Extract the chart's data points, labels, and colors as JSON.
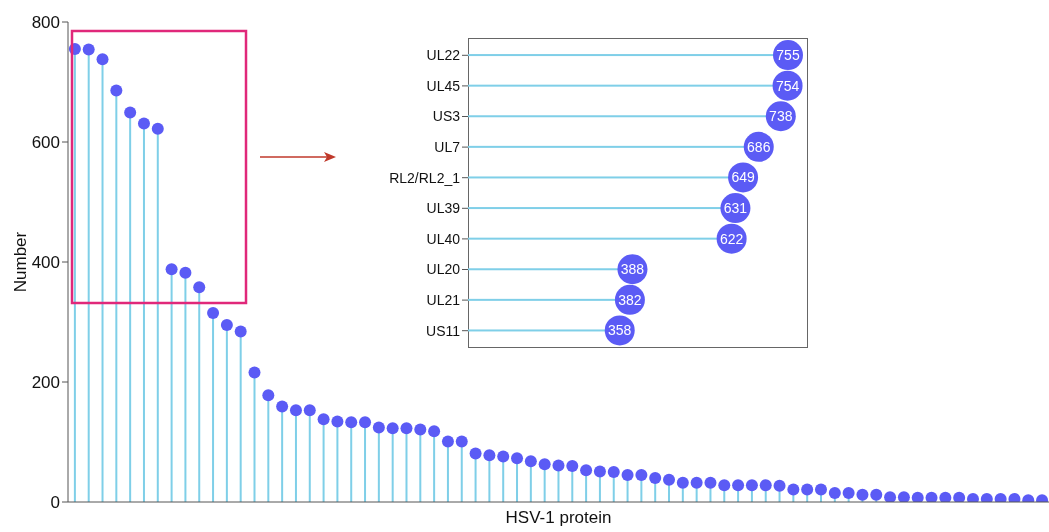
{
  "chart_data": [
    {
      "type": "lollipop",
      "xlabel": "HSV-1 protein",
      "ylabel": "Number",
      "categories": [
        null,
        null,
        null,
        null,
        null,
        null,
        null,
        null,
        null,
        null,
        null,
        null,
        null,
        null,
        null,
        null,
        null,
        null,
        null,
        null,
        null,
        null,
        null,
        null,
        null,
        null,
        null,
        null,
        null,
        null,
        null,
        null,
        null,
        null,
        null,
        null,
        null,
        null,
        null,
        null,
        null,
        null,
        null,
        null,
        null,
        null,
        null,
        null,
        null,
        null,
        null,
        null,
        null,
        null,
        null,
        null,
        null,
        null,
        null,
        null,
        null,
        null,
        null,
        null,
        null,
        null,
        null,
        null,
        null,
        null,
        null
      ],
      "values": [
        755,
        754,
        738,
        686,
        649,
        631,
        622,
        388,
        382,
        358,
        315,
        295,
        284,
        216,
        178,
        159,
        153,
        153,
        138,
        134,
        133,
        133,
        124,
        123,
        123,
        121,
        118,
        101,
        101,
        81,
        78,
        76,
        73,
        68,
        63,
        61,
        60,
        53,
        51,
        50,
        45,
        45,
        40,
        37,
        32,
        32,
        32,
        28,
        28,
        28,
        28,
        27,
        21,
        21,
        21,
        15,
        15,
        12,
        12,
        8,
        8,
        7,
        7,
        7,
        7,
        5,
        5,
        5,
        5,
        3,
        3
      ],
      "color": "#5b5bf5",
      "ylim": [
        0,
        800
      ],
      "yticks": [
        0,
        200,
        400,
        600,
        800
      ],
      "marker": "circle",
      "grid": false,
      "legend": false
    },
    {
      "type": "lollipop",
      "orientation": "horizontal",
      "categories": [
        "UL22",
        "UL45",
        "US3",
        "UL7",
        "RL2/RL2_1",
        "UL39",
        "UL40",
        "UL20",
        "UL21",
        "US11"
      ],
      "values": [
        755,
        754,
        738,
        686,
        649,
        631,
        622,
        388,
        382,
        358
      ],
      "color": "#5b5bf5",
      "data_labels": true,
      "marker": "circle",
      "grid": false,
      "legend": false
    }
  ]
}
